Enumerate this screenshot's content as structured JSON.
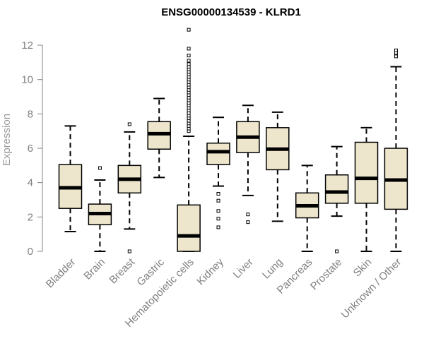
{
  "chart_data": {
    "type": "boxplot",
    "title": "ENSG00000134539 - KLRD1",
    "xlabel": "",
    "ylabel": "Expression",
    "ylim": [
      0,
      12.5
    ],
    "yticks": [
      0,
      2,
      4,
      6,
      8,
      10,
      12
    ],
    "grid": false,
    "box_fill": "#ede6cc",
    "box_stroke": "#000000",
    "categories": [
      "Bladder",
      "Brain",
      "Breast",
      "Gastric",
      "Hematopoietic cells",
      "Kidney",
      "Liver",
      "Lung",
      "Pancreas",
      "Prostate",
      "Skin",
      "Unknown / Other"
    ],
    "boxes": [
      {
        "min": 1.15,
        "q1": 2.5,
        "median": 3.7,
        "q3": 5.05,
        "max": 7.3,
        "outliers": []
      },
      {
        "min": 0.0,
        "q1": 1.55,
        "median": 2.2,
        "q3": 2.75,
        "max": 4.15,
        "outliers": [
          4.85
        ]
      },
      {
        "min": 1.3,
        "q1": 3.4,
        "median": 4.2,
        "q3": 5.0,
        "max": 6.95,
        "outliers": [
          0.0,
          7.4
        ]
      },
      {
        "min": 4.3,
        "q1": 5.95,
        "median": 6.85,
        "q3": 7.55,
        "max": 8.9,
        "outliers": []
      },
      {
        "min": 0.0,
        "q1": 0.0,
        "median": 0.9,
        "q3": 2.7,
        "max": 6.7,
        "outliers": [
          7.0,
          7.15,
          7.3,
          7.45,
          7.6,
          7.75,
          7.9,
          8.05,
          8.2,
          8.35,
          8.5,
          8.65,
          8.8,
          8.95,
          9.1,
          9.25,
          9.4,
          9.55,
          9.7,
          9.85,
          10.0,
          10.15,
          10.3,
          10.45,
          10.6,
          10.75,
          10.9,
          11.1,
          11.4,
          11.8,
          12.9
        ]
      },
      {
        "min": 3.8,
        "q1": 5.05,
        "median": 5.8,
        "q3": 6.3,
        "max": 7.8,
        "outliers": [
          1.4,
          1.9,
          2.35,
          2.95,
          3.35
        ]
      },
      {
        "min": 3.25,
        "q1": 5.75,
        "median": 6.65,
        "q3": 7.55,
        "max": 8.5,
        "outliers": [
          1.7,
          2.15
        ]
      },
      {
        "min": 1.75,
        "q1": 4.75,
        "median": 5.95,
        "q3": 7.2,
        "max": 8.1,
        "outliers": []
      },
      {
        "min": 0.0,
        "q1": 1.95,
        "median": 2.65,
        "q3": 3.4,
        "max": 5.0,
        "outliers": []
      },
      {
        "min": 2.05,
        "q1": 2.8,
        "median": 3.45,
        "q3": 4.45,
        "max": 6.1,
        "outliers": [
          0.0
        ]
      },
      {
        "min": 0.0,
        "q1": 2.8,
        "median": 4.25,
        "q3": 6.35,
        "max": 7.2,
        "outliers": []
      },
      {
        "min": 0.0,
        "q1": 2.45,
        "median": 4.15,
        "q3": 6.0,
        "max": 10.75,
        "outliers": [
          11.35,
          11.55,
          11.7
        ]
      }
    ]
  }
}
